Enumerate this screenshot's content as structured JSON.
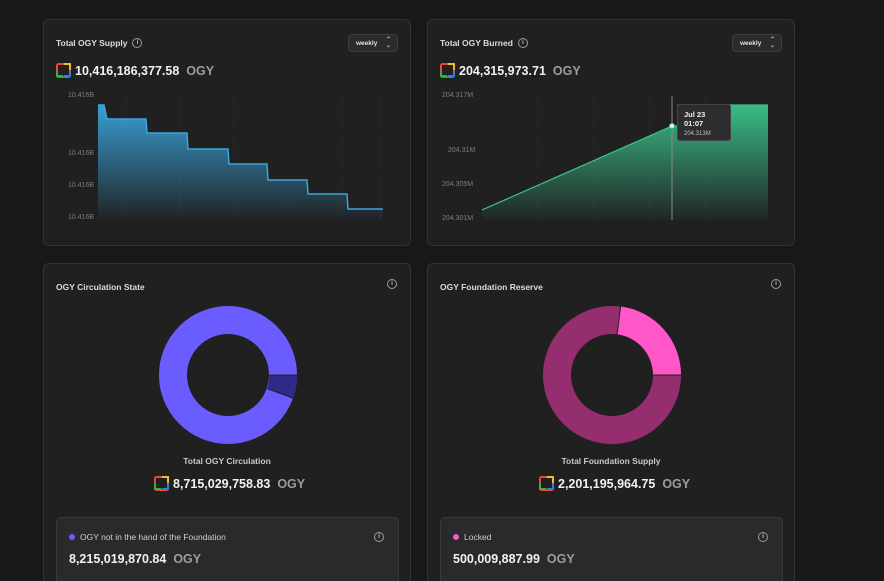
{
  "supply": {
    "title": "Total OGY Supply",
    "period": "weekly",
    "value": "10,416,186,377.58",
    "unit": "OGY",
    "y_ticks": [
      "10.416B",
      "10.416B",
      "10.416B",
      "10.416B"
    ],
    "color": "#3aa6dd"
  },
  "burned": {
    "title": "Total OGY Burned",
    "period": "weekly",
    "value": "204,315,973.71",
    "unit": "OGY",
    "y_ticks": [
      "204.317M",
      "204.31M",
      "204.305M",
      "204.301M"
    ],
    "tooltip_date": "Jul 23 01:07",
    "tooltip_value": "204.313M",
    "color": "#3bc48c"
  },
  "circulation": {
    "title": "OGY Circulation State",
    "center_label": "Total OGY Circulation",
    "value": "8,715,029,758.83",
    "unit": "OGY",
    "legend_label": "OGY not in the hand of the Foundation",
    "legend_value": "8,215,019,870.84",
    "legend_unit": "OGY",
    "colors": [
      "#6b5cff",
      "#2f2a88"
    ],
    "shares": [
      0.943,
      0.057
    ]
  },
  "reserve": {
    "title": "OGY Foundation Reserve",
    "center_label": "Total Foundation Supply",
    "value": "2,201,195,964.75",
    "unit": "OGY",
    "legend_label": "Locked",
    "legend_value": "500,009,887.99",
    "legend_unit": "OGY",
    "colors": [
      "#952e6e",
      "#ff56c8"
    ],
    "shares": [
      0.773,
      0.227
    ]
  },
  "chart_data": [
    {
      "type": "area",
      "y_tick_labels": [
        "10.416B",
        "10.416B",
        "10.416B",
        "10.416B"
      ],
      "series": [
        {
          "values": [
            10416.8,
            10416.7,
            10416.6,
            10416.5,
            10416.4,
            10416.3,
            10416.2,
            10416.1
          ]
        }
      ]
    },
    {
      "type": "area",
      "y_tick_labels": [
        "204.317M",
        "204.31M",
        "204.305M",
        "204.301M"
      ],
      "series": [
        {
          "values": [
            204.3015,
            204.313,
            204.3165
          ]
        }
      ]
    }
  ]
}
